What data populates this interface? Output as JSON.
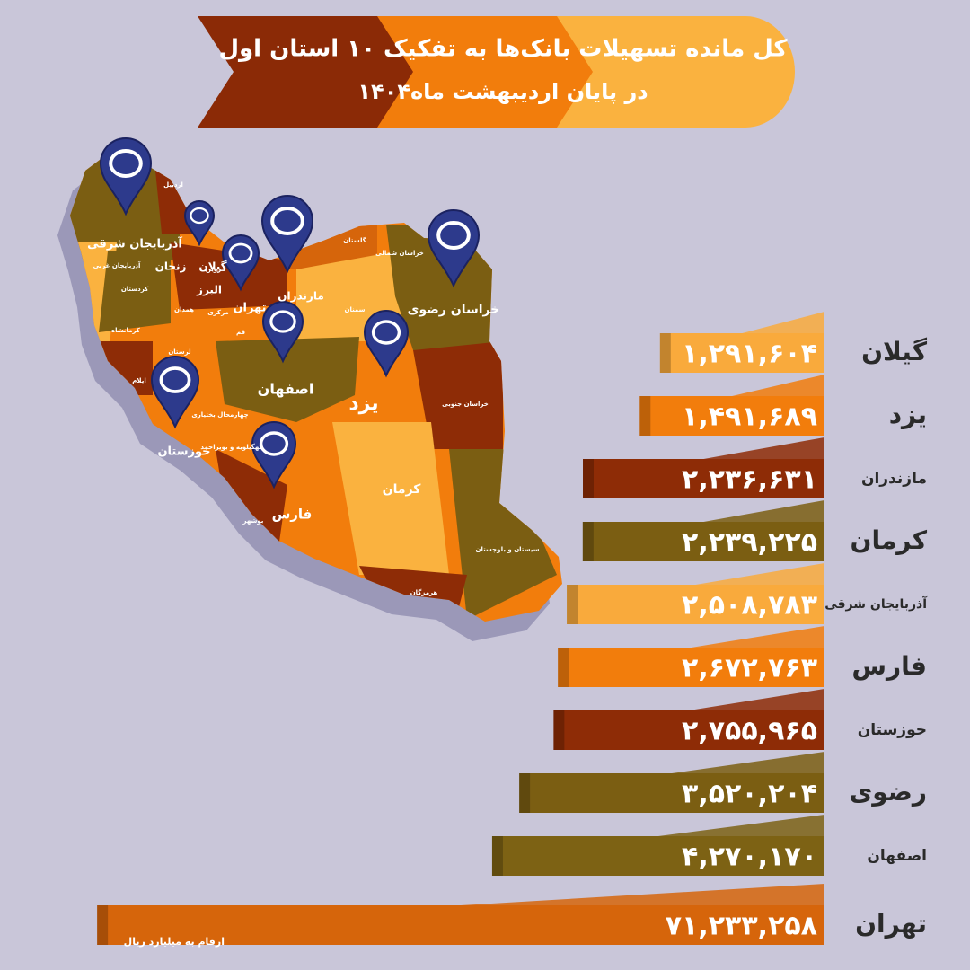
{
  "chart_data": {
    "type": "bar",
    "orientation": "horizontal",
    "title": "کل مانده تسهیلات بانک‌ها به تفکیک ۱۰ استان اول",
    "subtitle": "در پایان  اردیبهشت ماه۱۴۰۴",
    "note": "ارقام به میلیارد ریال",
    "categories": [
      "گیلان",
      "یزد",
      "مازندران",
      "کرمان",
      "آذربایجان شرقی",
      "فارس",
      "خوزستان",
      "رضوی",
      "اصفهان",
      "تهران"
    ],
    "values": [
      1291604,
      1491689,
      2236631,
      2239225,
      2508783,
      2672763,
      2755965,
      3520204,
      4270170,
      71233258
    ],
    "value_labels": [
      "۱,۲۹۱,۶۰۴",
      "۱,۴۹۱,۶۸۹",
      "۲,۲۳۶,۶۳۱",
      "۲,۲۳۹,۲۲۵",
      "۲,۵۰۸,۷۸۳",
      "۲,۶۷۲,۷۶۳",
      "۲,۷۵۵,۹۶۵",
      "۳,۵۲۰,۲۰۴",
      "۴,۲۷۰,۱۷۰",
      "۷۱,۲۳۳,۲۵۸"
    ],
    "colors": [
      "#f9aa3c",
      "#f27d0c",
      "#8e2c06",
      "#7b5e12",
      "#f9aa3c",
      "#f27d0c",
      "#8e2c06",
      "#7b5e12",
      "#7d6214",
      "#d6650b"
    ],
    "log_scale": true,
    "xlim": [
      400000,
      80000000
    ],
    "map_labels": [
      "آذربایجان شرقی",
      "گیلان",
      "تهران",
      "مازندران",
      "خراسان رضوی",
      "اصفهان",
      "یزد",
      "خوزستان",
      "فارس",
      "کرمان",
      "اردبیل",
      "زنجان",
      "آذربایجان غربی",
      "کردستان",
      "البرز",
      "قزوین",
      "همدان",
      "مرکزی",
      "کرمانشاه",
      "لرستان",
      "ایلام",
      "قم",
      "سمنان",
      "گلستان",
      "خراسان شمالی",
      "خراسان جنوبی",
      "چهارمحال بختیاری",
      "کهگیلویه و بویراحمد",
      "بوشهر",
      "سیستان و بلوچستان",
      "هرمزگان"
    ]
  }
}
